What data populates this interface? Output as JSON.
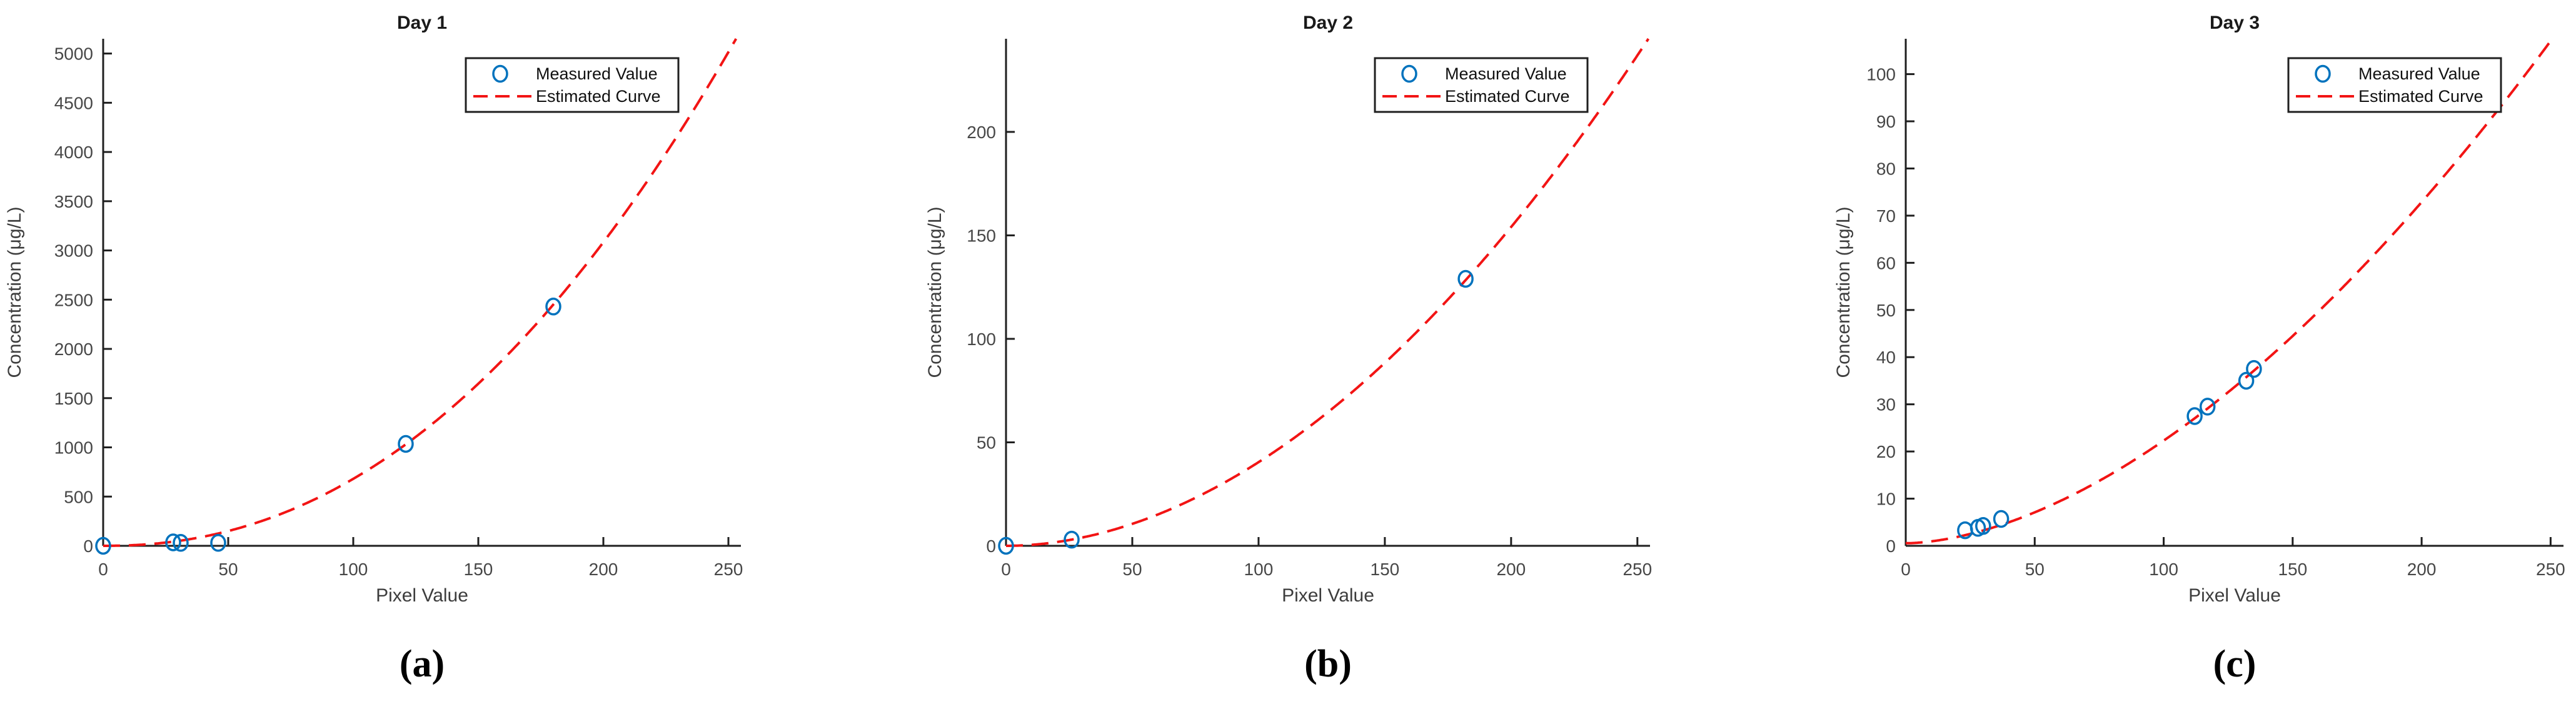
{
  "figure": {
    "background": "#ffffff",
    "captions": [
      "(a)",
      "(b)",
      "(c)"
    ]
  },
  "colors": {
    "measured_marker": "#0072BD",
    "estimated_curve": "#F21414",
    "axis_line": "#1f1f1f",
    "tick_label": "#474747",
    "axis_label": "#3d3d3d",
    "title": "#1a1a1a",
    "caption": "#000000",
    "legend_border": "#1f1f1f",
    "legend_text": "#111111",
    "legend_background": "#ffffff"
  },
  "legend": {
    "items": [
      {
        "label": "Measured Value",
        "marker": "circle-icon"
      },
      {
        "label": "Estimated Curve",
        "marker": "dashed-line-icon"
      }
    ]
  },
  "chart_data": [
    {
      "type": "scatter",
      "title": "Day 1",
      "caption": "(a)",
      "xlabel": "Pixel Value",
      "ylabel": "Concentration (μg/L)",
      "xlim": [
        0,
        255
      ],
      "ylim": [
        0,
        5150
      ],
      "xticks": [
        0,
        50,
        100,
        150,
        200,
        250
      ],
      "yticks": [
        0,
        500,
        1000,
        1500,
        2000,
        2500,
        3000,
        3500,
        4000,
        4500,
        5000
      ],
      "grid": false,
      "legend_position": "northeast",
      "series": [
        {
          "name": "Measured Value",
          "type": "scatter",
          "points": [
            [
              0,
              0
            ],
            [
              28,
              35
            ],
            [
              31,
              30
            ],
            [
              46,
              30
            ],
            [
              121,
              1035
            ],
            [
              180,
              2430
            ]
          ]
        },
        {
          "name": "Estimated Curve",
          "type": "power_curve",
          "equation": "y = a*x^b + c0",
          "params": {
            "a": 0.0297,
            "b": 2.18,
            "c0": 0
          },
          "x_range": [
            0,
            255
          ]
        }
      ]
    },
    {
      "type": "scatter",
      "title": "Day 2",
      "caption": "(b)",
      "xlabel": "Pixel Value",
      "ylabel": "Concentration (μg/L)",
      "xlim": [
        0,
        255
      ],
      "ylim": [
        0,
        245
      ],
      "xticks": [
        0,
        50,
        100,
        150,
        200,
        250
      ],
      "yticks": [
        0,
        50,
        100,
        150,
        200
      ],
      "grid": false,
      "legend_position": "northeast",
      "series": [
        {
          "name": "Measured Value",
          "type": "scatter",
          "points": [
            [
              0,
              0
            ],
            [
              26,
              3
            ],
            [
              182,
              129
            ]
          ]
        },
        {
          "name": "Estimated Curve",
          "type": "power_curve",
          "equation": "y = a*x^b + c0",
          "params": {
            "a": 0.00558,
            "b": 1.93,
            "c0": 0
          },
          "x_range": [
            0,
            255
          ]
        }
      ]
    },
    {
      "type": "scatter",
      "title": "Day 3",
      "caption": "(c)",
      "xlabel": "Pixel Value",
      "ylabel": "Concentration (μg/L)",
      "xlim": [
        0,
        255
      ],
      "ylim": [
        0,
        107.5
      ],
      "xticks": [
        0,
        50,
        100,
        150,
        200,
        250
      ],
      "yticks": [
        0,
        10,
        20,
        30,
        40,
        50,
        60,
        70,
        80,
        90,
        100
      ],
      "grid": false,
      "legend_position": "northeast",
      "series": [
        {
          "name": "Measured Value",
          "type": "scatter",
          "points": [
            [
              23,
              3.3
            ],
            [
              28,
              3.8
            ],
            [
              30,
              4.2
            ],
            [
              37,
              5.7
            ],
            [
              112,
              27.5
            ],
            [
              117,
              29.5
            ],
            [
              132,
              35
            ],
            [
              135,
              37.5
            ]
          ]
        },
        {
          "name": "Estimated Curve",
          "type": "power_curve",
          "equation": "y = a*x^b + c0",
          "params": {
            "a": 0.00744,
            "b": 1.733,
            "c0": 0.55
          },
          "x_range": [
            0,
            255
          ]
        }
      ]
    }
  ]
}
